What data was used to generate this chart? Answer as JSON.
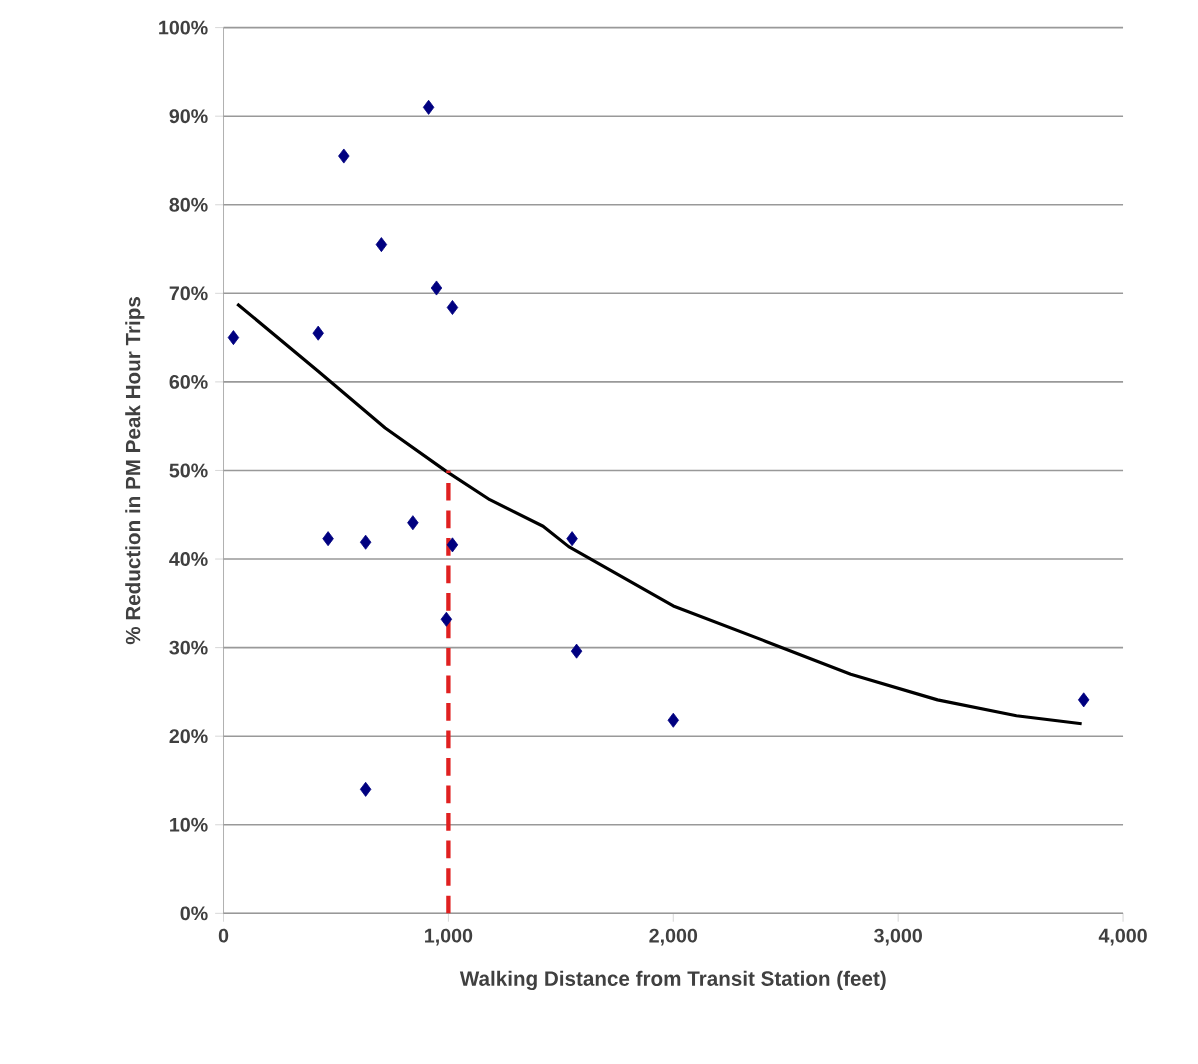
{
  "chart_data": {
    "type": "scatter",
    "xlabel": "Walking Distance from Transit Station (feet)",
    "ylabel": "% Reduction in PM Peak Hour Trips",
    "xlim": [
      0,
      4000
    ],
    "ylim": [
      0,
      100
    ],
    "xticks": [
      0,
      {
        "value": 1000,
        "label": "1,000"
      },
      {
        "value": 2000,
        "label": "2,000"
      },
      {
        "value": 3000,
        "label": "3,000"
      },
      {
        "value": 4000,
        "label": "4,000"
      }
    ],
    "yticks": [
      {
        "value": 0,
        "label": "0%"
      },
      {
        "value": 10,
        "label": "10%"
      },
      {
        "value": 20,
        "label": "20%"
      },
      {
        "value": 30,
        "label": "30%"
      },
      {
        "value": 40,
        "label": "40%"
      },
      {
        "value": 50,
        "label": "50%"
      },
      {
        "value": 60,
        "label": "60%"
      },
      {
        "value": 70,
        "label": "70%"
      },
      {
        "value": 80,
        "label": "80%"
      },
      {
        "value": 90,
        "label": "90%"
      },
      {
        "value": 100,
        "label": "100%"
      }
    ],
    "grid": "y",
    "series": [
      {
        "marker": "diamond",
        "color": "#000080",
        "x": [
          44,
          421,
          535,
          702,
          912,
          947,
          1018,
          465,
          632,
          842,
          1018,
          991,
          1550,
          1570,
          632,
          2000,
          3825
        ],
        "values": [
          65.0,
          65.5,
          85.5,
          75.5,
          91,
          70.6,
          68.4,
          42.3,
          41.9,
          44.1,
          41.6,
          33.2,
          42.3,
          29.6,
          14.0,
          21.8,
          24.1
        ]
      },
      {
        "type": "line",
        "marker": "none",
        "line_style": "solid",
        "color": "#000000",
        "x": [
          61,
          421,
          719,
          991,
          1184,
          1421,
          1535,
          2000,
          2412,
          2789,
          3175,
          3526,
          3816
        ],
        "values": [
          68.8,
          61.2,
          54.8,
          49.9,
          46.7,
          43.7,
          41.4,
          34.7,
          30.7,
          27,
          24.1,
          22.3,
          21.4
        ]
      },
      {
        "type": "line",
        "marker": "none",
        "line_style": "dashed",
        "color": "#e02020",
        "x": [
          1000,
          1000
        ],
        "values": [
          0,
          50
        ]
      }
    ]
  }
}
